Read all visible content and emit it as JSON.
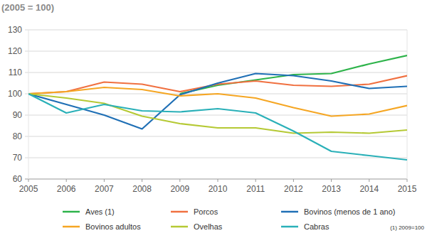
{
  "chart_data": {
    "type": "line",
    "title": "(2005 = 100)",
    "annotation": "(1) 2009=100",
    "x": [
      2005,
      2006,
      2007,
      2008,
      2009,
      2010,
      2011,
      2012,
      2013,
      2014,
      2015
    ],
    "xlim": [
      2005,
      2015
    ],
    "xticks": [
      2005,
      2006,
      2007,
      2008,
      2009,
      2010,
      2011,
      2012,
      2013,
      2014,
      2015
    ],
    "ylim": [
      60,
      130
    ],
    "yticks": [
      60,
      70,
      80,
      90,
      100,
      110,
      120,
      130
    ],
    "grid": true,
    "legend": "bottom",
    "series": [
      {
        "name": "Aves (1)",
        "color": "#2db34a",
        "values": [
          null,
          null,
          null,
          null,
          100,
          104,
          106.5,
          109,
          109.5,
          114,
          118
        ]
      },
      {
        "name": "Porcos",
        "color": "#f07040",
        "values": [
          100,
          101,
          105.5,
          104.5,
          101,
          104.5,
          106,
          104,
          103.5,
          104.5,
          108.5
        ]
      },
      {
        "name": "Bovinos (menos de 1 ano)",
        "color": "#1f6fb5",
        "values": [
          100,
          95,
          90,
          83.5,
          99.5,
          105,
          109.5,
          108.5,
          106,
          102.5,
          103.5
        ]
      },
      {
        "name": "Bovinos adultos",
        "color": "#f5a623",
        "values": [
          100,
          101,
          103,
          102,
          99,
          100,
          98,
          93.5,
          89.5,
          90.5,
          94.5
        ]
      },
      {
        "name": "Ovelhas",
        "color": "#b5c934",
        "values": [
          100,
          98,
          95.5,
          89.5,
          86,
          84,
          84,
          81.5,
          82,
          81.5,
          83
        ]
      },
      {
        "name": "Cabras",
        "color": "#2ab0b8",
        "values": [
          100,
          91,
          95,
          92,
          91.5,
          93,
          91,
          82.5,
          73,
          71,
          69
        ]
      }
    ]
  }
}
